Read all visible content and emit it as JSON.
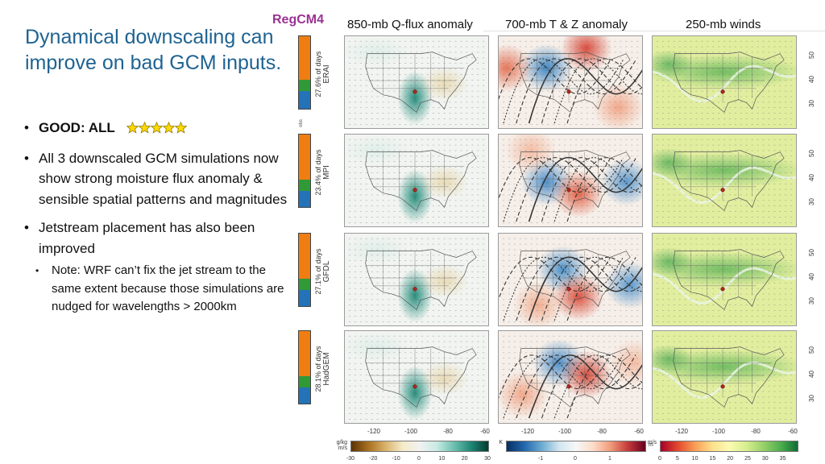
{
  "slide": {
    "title": "Dynamical downscaling can improve on bad GCM inputs.",
    "bullets": [
      {
        "text_bold": "GOOD: ALL",
        "rating": 5,
        "rating_max": 5,
        "level": 1
      },
      {
        "text": "All 3 downscaled GCM simulations now show strong moisture flux anomaly & sensible spatial patterns and magnitudes",
        "level": 1
      },
      {
        "text": "Jetstream placement has also been improved",
        "level": 1
      },
      {
        "text": "Note: WRF can’t fix the jet stream to the same extent because those simulations are nudged for wavelengths > 2000km",
        "level": 2
      }
    ]
  },
  "figure": {
    "model_label": "RegCM4",
    "columns": [
      "850-mb Q-flux anomaly",
      "700-mb T & Z anomaly",
      "250-mb winds"
    ],
    "rows": [
      {
        "name": "ERAI",
        "pct_days": "27.6% of days",
        "fractions": {
          "orange": 0.6,
          "green": 0.15,
          "blue": 0.25
        }
      },
      {
        "name": "MPI",
        "pct_days": "23.4% of days",
        "fractions": {
          "orange": 0.62,
          "green": 0.16,
          "blue": 0.22
        }
      },
      {
        "name": "GFDL",
        "pct_days": "27.1% of days",
        "fractions": {
          "orange": 0.62,
          "green": 0.16,
          "blue": 0.22
        }
      },
      {
        "name": "HadGEM",
        "pct_days": "28.1% of days",
        "fractions": {
          "orange": 0.62,
          "green": 0.16,
          "blue": 0.22
        }
      }
    ],
    "obs_label": "obs",
    "bar_colors": {
      "orange": "#f07d12",
      "green": "#2f9a36",
      "blue": "#2472b8"
    },
    "lon_ticks": [
      "-120",
      "-100",
      "-80",
      "-60"
    ],
    "lat_ticks": [
      "50",
      "40",
      "30"
    ],
    "colorbars": [
      {
        "unit": "g/kg\nm/s",
        "unit_line1": "g/kg",
        "unit_line2": "m/s",
        "ticks": [
          "-30",
          "-20",
          "-10",
          "0",
          "10",
          "20",
          "30"
        ],
        "colors": [
          "#5b3205",
          "#a8701f",
          "#d9b26a",
          "#f4ebc8",
          "#f2f2f2",
          "#c8ebe3",
          "#6cc0b0",
          "#1f8676",
          "#023c30"
        ]
      },
      {
        "unit": "K",
        "unit_right": "m",
        "ticks": [
          "-1",
          "0",
          "1"
        ],
        "colors": [
          "#053061",
          "#2166ac",
          "#6aa9d0",
          "#d1e5f0",
          "#f7f7f7",
          "#fddbc7",
          "#f09a7a",
          "#c43a3a",
          "#67001f"
        ]
      },
      {
        "unit": "m/s",
        "ticks": [
          "0",
          "5",
          "10",
          "15",
          "20",
          "25",
          "30",
          "35"
        ],
        "colors": [
          "#a50026",
          "#e2482e",
          "#f99d55",
          "#fedf8b",
          "#fbfbb2",
          "#d7ee8e",
          "#98d06a",
          "#4eaf4f",
          "#0d6d33"
        ]
      }
    ]
  }
}
